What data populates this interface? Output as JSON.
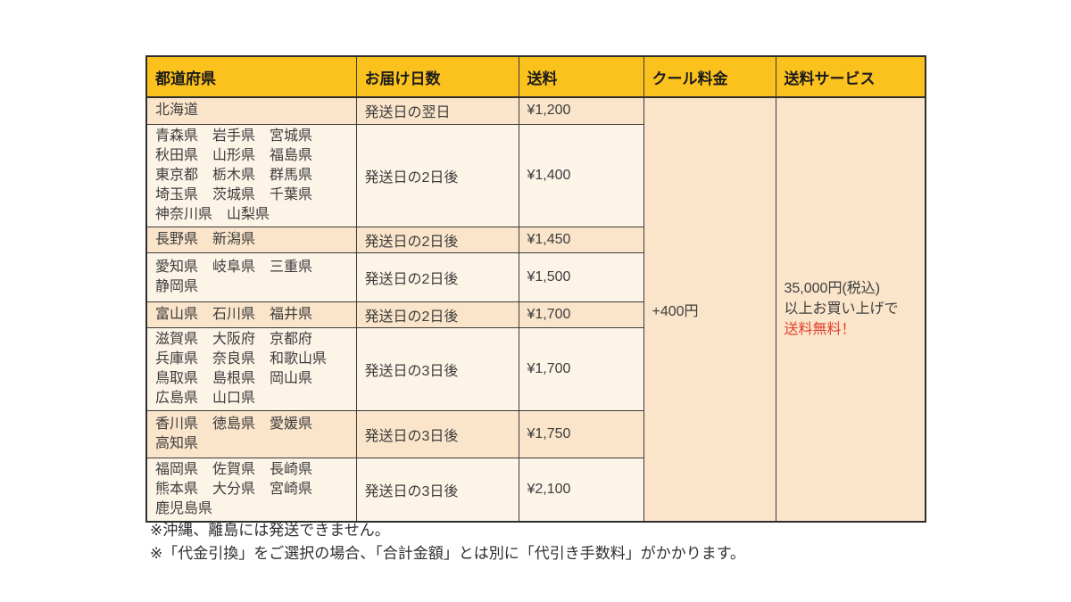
{
  "table": {
    "headers": [
      {
        "label": "都道府県"
      },
      {
        "label": "お届け日数"
      },
      {
        "label": "送料"
      },
      {
        "label": "クール料金"
      },
      {
        "label": "送料サービス"
      }
    ],
    "rows": [
      {
        "prefecture_lines": [
          "北海道"
        ],
        "days": "発送日の翌日",
        "fee": "¥1,200",
        "shade": "peach"
      },
      {
        "prefecture_lines": [
          "青森県　岩手県　宮城県",
          "秋田県　山形県　福島県",
          "東京都　栃木県　群馬県",
          "埼玉県　茨城県　千葉県",
          "神奈川県　山梨県"
        ],
        "days": "発送日の2日後",
        "fee": "¥1,400",
        "shade": "cream"
      },
      {
        "prefecture_lines": [
          "長野県　新潟県"
        ],
        "days": "発送日の2日後",
        "fee": "¥1,450",
        "shade": "peach"
      },
      {
        "prefecture_lines": [
          "愛知県　岐阜県　三重県",
          "静岡県"
        ],
        "days": "発送日の2日後",
        "fee": "¥1,500",
        "shade": "cream"
      },
      {
        "prefecture_lines": [
          "富山県　石川県　福井県"
        ],
        "days": "発送日の2日後",
        "fee": "¥1,700",
        "shade": "peach"
      },
      {
        "prefecture_lines": [
          "滋賀県　大阪府　京都府",
          "兵庫県　奈良県　和歌山県",
          "鳥取県　島根県　岡山県",
          "広島県　山口県"
        ],
        "days": "発送日の3日後",
        "fee": "¥1,700",
        "shade": "cream"
      },
      {
        "prefecture_lines": [
          "香川県　徳島県　愛媛県",
          "高知県"
        ],
        "days": "発送日の3日後",
        "fee": "¥1,750",
        "shade": "peach"
      },
      {
        "prefecture_lines": [
          "福岡県　佐賀県　長崎県",
          "熊本県　大分県　宮崎県",
          "鹿児島県"
        ],
        "days": "発送日の3日後",
        "fee": "¥2,100",
        "shade": "cream"
      }
    ],
    "cool_fee": "+400円",
    "service_lines": [
      "35,000円(税込)",
      "以上お買い上げで",
      "送料無料！"
    ],
    "service_highlight_line_index": 2
  },
  "notes": [
    "※沖縄、離島には発送できません。",
    "※「代金引換」をご選択の場合、「合計金額」とは別に「代引き手数料」がかかります。"
  ],
  "colors": {
    "header_bg": "#fbc11c",
    "row_peach": "#fae5cb",
    "row_cream": "#fdf4e8",
    "border": "#3a3a3a",
    "text": "#3d3d3d",
    "highlight_red": "#e2422d"
  }
}
